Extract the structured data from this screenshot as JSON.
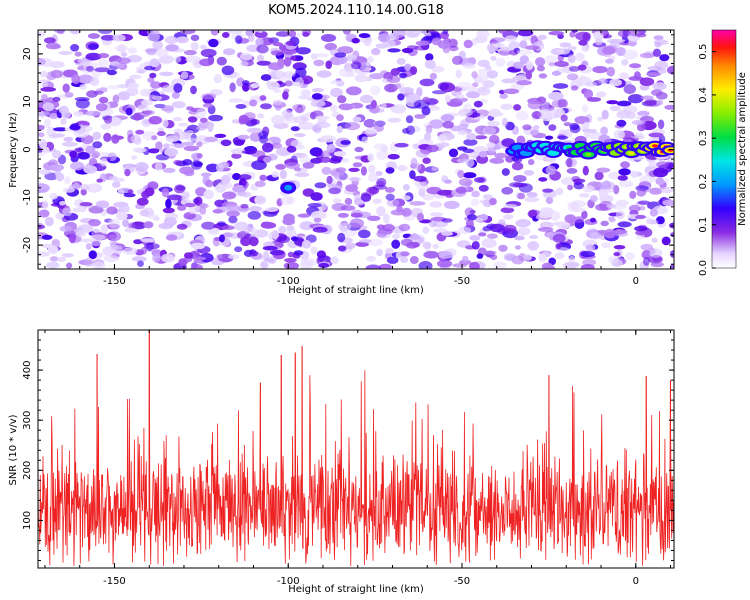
{
  "title": "KOM5.2024.110.14.00.G18",
  "chart_data": [
    {
      "type": "heatmap",
      "xlabel": "Height of straight line (km)",
      "ylabel": "Frequency (Hz)",
      "xlim": [
        -172,
        11
      ],
      "ylim": [
        -25,
        25
      ],
      "xticks": [
        -150,
        -100,
        -50,
        0
      ],
      "yticks": [
        -20,
        -10,
        0,
        10,
        20
      ],
      "colorbar": {
        "label": "Normalized spectral amplitude",
        "range": [
          0,
          0.55
        ],
        "ticks": [
          "0.0",
          "0.1",
          "0.2",
          "0.3",
          "0.4",
          "0.5"
        ],
        "colormap": "rainbow (white-violet-blue-cyan-green-yellow-red-magenta)"
      },
      "features": [
        {
          "label": "narrowband signal near 0 Hz",
          "x_range": [
            -35,
            10
          ],
          "frequency_hz": 0,
          "amplitude": 0.5
        },
        {
          "label": "isolated peak",
          "x": -100,
          "frequency_hz": -8,
          "amplitude": 0.15
        }
      ],
      "grid": false
    },
    {
      "type": "line",
      "xlabel": "Height of straight line (km)",
      "ylabel": "SNR (10 * v/v)",
      "xlim": [
        -172,
        11
      ],
      "ylim": [
        5,
        480
      ],
      "xticks": [
        -150,
        -100,
        -50,
        0
      ],
      "yticks": [
        100,
        200,
        300,
        400
      ],
      "series_color": "#ee2222",
      "noise_baseline": 120,
      "peaks": [
        {
          "x": -140,
          "y": 480
        },
        {
          "x": -96,
          "y": 448
        },
        {
          "x": -98,
          "y": 435
        },
        {
          "x": -155,
          "y": 432
        },
        {
          "x": -102,
          "y": 430
        },
        {
          "x": -25,
          "y": 390
        },
        {
          "x": 3,
          "y": 388
        },
        {
          "x": -108,
          "y": 375
        },
        {
          "x": 10,
          "y": 380
        }
      ],
      "grid": false
    }
  ]
}
